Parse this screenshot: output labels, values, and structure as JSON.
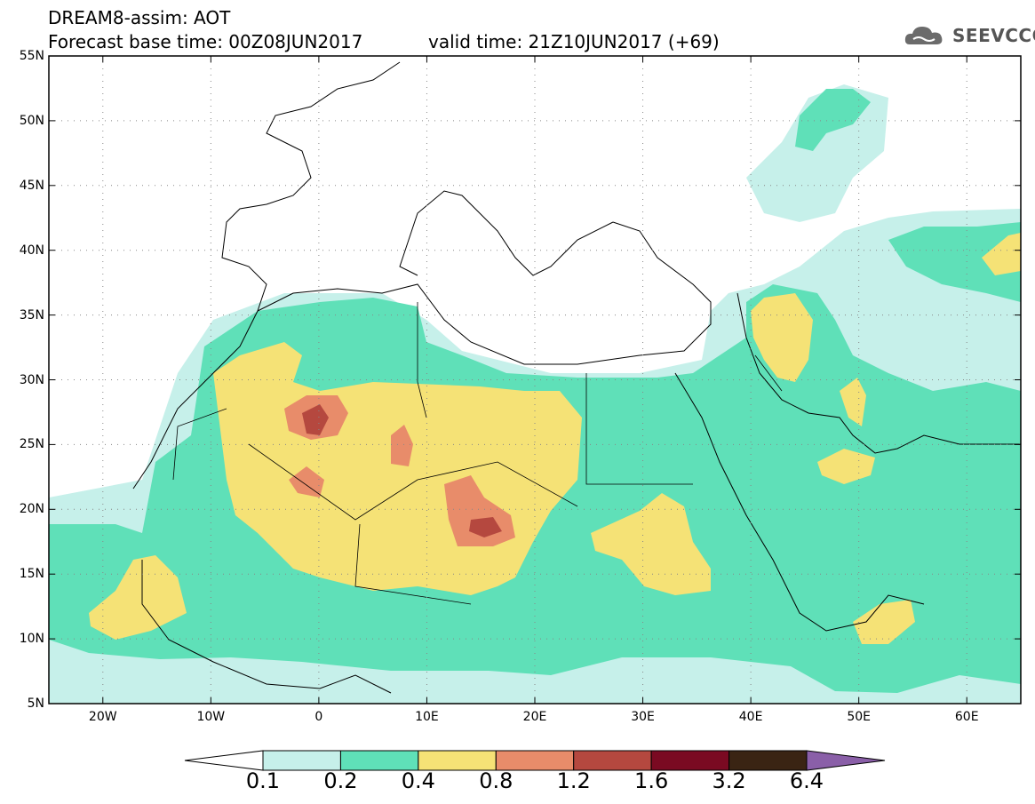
{
  "title": {
    "line1": "DREAM8-assim: AOT",
    "base_time": "Forecast base time: 00Z08JUN2017",
    "valid_time": "valid time: 21Z10JUN2017 (+69)"
  },
  "logo": {
    "text": "SEEVCCC",
    "icon": "cloud-logo-icon"
  },
  "map": {
    "lon_range": [
      -25,
      65
    ],
    "lat_range": [
      5,
      55
    ],
    "lon_ticks": [
      "20W",
      "10W",
      "0",
      "10E",
      "20E",
      "30E",
      "40E",
      "50E",
      "60E"
    ],
    "lat_ticks": [
      "55N",
      "50N",
      "45N",
      "40N",
      "35N",
      "30N",
      "25N",
      "20N",
      "15N",
      "10N",
      "5N"
    ],
    "grid": "dotted"
  },
  "colorbar": {
    "levels": [
      "0.1",
      "0.2",
      "0.4",
      "0.8",
      "1.2",
      "1.6",
      "3.2",
      "6.4"
    ],
    "colors": [
      "#ffffff",
      "#c6f0ea",
      "#5fe0b8",
      "#f5e276",
      "#e88c6a",
      "#b5483f",
      "#7a0a22",
      "#3a2413",
      "#8a5fa8"
    ]
  }
}
